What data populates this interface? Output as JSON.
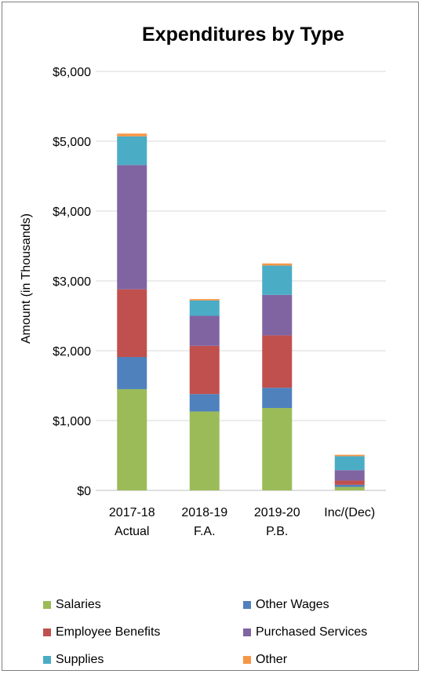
{
  "chart_data": {
    "type": "bar",
    "stacked": true,
    "title": "Expenditures by Type",
    "xlabel": "",
    "ylabel": "Amount (in Thousands)",
    "ylim": [
      0,
      6000
    ],
    "yticks": [
      "$0",
      "$1,000",
      "$2,000",
      "$3,000",
      "$4,000",
      "$5,000",
      "$6,000"
    ],
    "ytick_values": [
      0,
      1000,
      2000,
      3000,
      4000,
      5000,
      6000
    ],
    "categories": [
      [
        "2017-18",
        "Actual"
      ],
      [
        "2018-19",
        "F.A."
      ],
      [
        "2019-20",
        "P.B."
      ],
      [
        "Inc/(Dec)"
      ]
    ],
    "grid": true,
    "legend_position": "bottom",
    "series": [
      {
        "name": "Salaries",
        "color": "#9bbb59",
        "values": [
          1450,
          1130,
          1180,
          50
        ]
      },
      {
        "name": "Other Wages",
        "color": "#4f81bd",
        "values": [
          460,
          250,
          290,
          30
        ]
      },
      {
        "name": "Employee Benefits",
        "color": "#c0504d",
        "values": [
          970,
          690,
          750,
          60
        ]
      },
      {
        "name": "Purchased Services",
        "color": "#8064a2",
        "values": [
          1780,
          430,
          580,
          150
        ]
      },
      {
        "name": "Supplies",
        "color": "#4bacc6",
        "values": [
          410,
          220,
          420,
          200
        ]
      },
      {
        "name": "Other",
        "color": "#f79646",
        "values": [
          40,
          20,
          30,
          20
        ]
      }
    ]
  }
}
